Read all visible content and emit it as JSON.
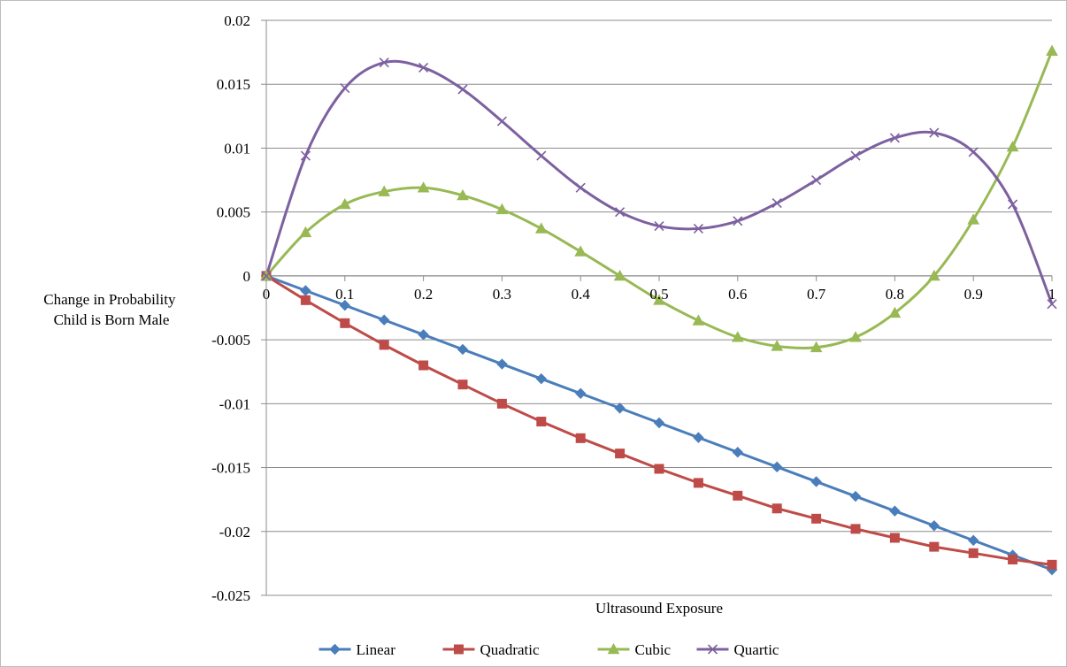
{
  "chart_data": {
    "type": "line",
    "title": "",
    "xlabel": "Ultrasound Exposure",
    "ylabel_lines": [
      "Change in Probability",
      "Child is Born Male"
    ],
    "xlim": [
      0,
      1
    ],
    "ylim": [
      -0.025,
      0.02
    ],
    "x_ticks": [
      "0",
      "0.1",
      "0.2",
      "0.3",
      "0.4",
      "0.5",
      "0.6",
      "0.7",
      "0.8",
      "0.9",
      "1"
    ],
    "y_ticks": [
      "0.02",
      "0.015",
      "0.01",
      "0.005",
      "0",
      "-0.005",
      "-0.01",
      "-0.015",
      "-0.02",
      "-0.025"
    ],
    "grid": "horizontal",
    "legend_position": "bottom",
    "x": [
      0,
      0.05,
      0.1,
      0.15,
      0.2,
      0.25,
      0.3,
      0.35,
      0.4,
      0.45,
      0.5,
      0.55,
      0.6,
      0.65,
      0.7,
      0.75,
      0.8,
      0.85,
      0.9,
      0.95,
      1
    ],
    "series": [
      {
        "name": "Linear",
        "color": "#4a7ebb",
        "marker": "diamond",
        "values": [
          0,
          -0.00115,
          -0.0023,
          -0.00345,
          -0.0046,
          -0.00575,
          -0.0069,
          -0.00805,
          -0.0092,
          -0.01035,
          -0.0115,
          -0.01265,
          -0.0138,
          -0.01495,
          -0.0161,
          -0.01725,
          -0.0184,
          -0.01955,
          -0.0207,
          -0.02185,
          -0.023
        ]
      },
      {
        "name": "Quadratic",
        "color": "#be4b48",
        "marker": "square",
        "values": [
          0,
          -0.0019,
          -0.0037,
          -0.0054,
          -0.007,
          -0.0085,
          -0.01,
          -0.0114,
          -0.0127,
          -0.0139,
          -0.0151,
          -0.0162,
          -0.0172,
          -0.0182,
          -0.019,
          -0.0198,
          -0.0205,
          -0.0212,
          -0.0217,
          -0.0222,
          -0.0226
        ]
      },
      {
        "name": "Cubic",
        "color": "#98b954",
        "marker": "triangle",
        "values": [
          0,
          0.0034,
          0.0056,
          0.0066,
          0.0069,
          0.0063,
          0.0052,
          0.0037,
          0.0019,
          0,
          -0.0019,
          -0.0035,
          -0.0048,
          -0.0055,
          -0.0056,
          -0.0048,
          -0.0029,
          0,
          0.0044,
          0.0101,
          0.0176
        ]
      },
      {
        "name": "Quartic",
        "color": "#7d60a0",
        "marker": "x",
        "values": [
          0,
          0.0094,
          0.0147,
          0.0167,
          0.0163,
          0.0146,
          0.0121,
          0.0094,
          0.0069,
          0.005,
          0.0039,
          0.0037,
          0.0043,
          0.0057,
          0.0075,
          0.0094,
          0.0108,
          0.0112,
          0.0097,
          0.0056,
          -0.0022
        ]
      }
    ]
  }
}
